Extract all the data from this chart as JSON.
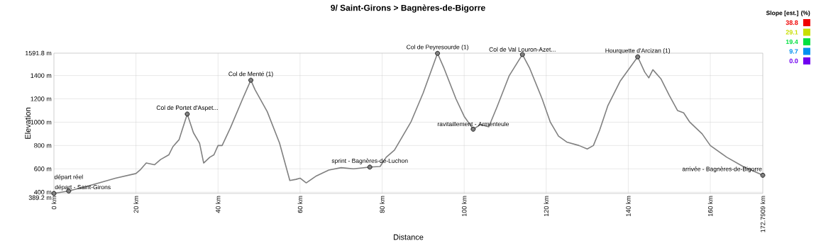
{
  "chart_data": {
    "type": "line",
    "title": "9/ Saint-Girons > Bagnères-de-Bigorre",
    "xlabel": "Distance",
    "ylabel": "Elevation",
    "clabel": "Slope [est.] (%)",
    "clim": [
      0,
      38.8
    ],
    "cticks": [
      {
        "value": 38.8,
        "label": "38.8"
      },
      {
        "value": 29.1,
        "label": "29.1"
      },
      {
        "value": 19.4,
        "label": "19.4"
      },
      {
        "value": 9.7,
        "label": "9.7"
      },
      {
        "value": 0,
        "label": "0.0"
      }
    ],
    "grid": true,
    "marker": "none",
    "line_style": "solid",
    "xlim": [
      0,
      172.7909
    ],
    "ylim": [
      389.2,
      1591.8
    ],
    "xticks": [
      {
        "value": 0,
        "label": "0 km"
      },
      {
        "value": 20,
        "label": "20 km"
      },
      {
        "value": 40,
        "label": "40 km"
      },
      {
        "value": 60,
        "label": "60 km"
      },
      {
        "value": 80,
        "label": "80 km"
      },
      {
        "value": 100,
        "label": "100 km"
      },
      {
        "value": 120,
        "label": "120 km"
      },
      {
        "value": 140,
        "label": "140 km"
      },
      {
        "value": 160,
        "label": "160 km"
      },
      {
        "value": 172.7909,
        "label": "172.7909 km"
      }
    ],
    "yticks": [
      {
        "value": 389.2,
        "label": "389.2 m"
      },
      {
        "value": 400,
        "label": "400 m"
      },
      {
        "value": 600,
        "label": "600 m"
      },
      {
        "value": 800,
        "label": "800 m"
      },
      {
        "value": 1000,
        "label": "1000 m"
      },
      {
        "value": 1200,
        "label": "1200 m"
      },
      {
        "value": 1400,
        "label": "1400 m"
      },
      {
        "value": 1591.8,
        "label": "1591.8 m"
      }
    ],
    "series": [
      {
        "color": "#808080",
        "x": [
          0,
          3.6,
          8,
          12,
          15,
          20,
          21,
          22.5,
          24.5,
          26,
          28,
          29,
          30.5,
          32.5,
          34,
          35.5,
          36.5,
          38,
          39,
          40,
          41,
          43,
          46,
          48,
          49,
          52,
          55,
          57.5,
          59,
          60,
          61.5,
          64,
          67,
          70,
          73,
          77,
          79.5,
          81,
          83,
          84.5,
          87,
          90,
          93.5,
          95,
          98,
          100,
          102.2,
          104,
          106,
          108,
          111,
          114.2,
          116,
          119,
          121,
          123,
          125,
          128,
          130,
          131.5,
          133,
          135,
          138,
          142.3,
          144,
          145,
          146,
          148,
          150,
          152,
          153.5,
          155,
          158,
          160,
          164,
          168,
          172.79
        ],
        "values": [
          389.2,
          410,
          450,
          490,
          520,
          560,
          590,
          650,
          635,
          680,
          720,
          790,
          850,
          1070,
          910,
          820,
          650,
          700,
          720,
          800,
          800,
          950,
          1200,
          1360,
          1280,
          1090,
          820,
          500,
          510,
          520,
          480,
          540,
          590,
          610,
          600,
          615,
          620,
          700,
          760,
          850,
          1000,
          1250,
          1590,
          1470,
          1200,
          1050,
          940,
          980,
          960,
          1130,
          1400,
          1580,
          1460,
          1200,
          1000,
          880,
          830,
          800,
          770,
          800,
          930,
          1140,
          1350,
          1560,
          1430,
          1380,
          1450,
          1370,
          1230,
          1100,
          1080,
          1000,
          900,
          800,
          700,
          620,
          545
        ]
      }
    ],
    "annotations": [
      {
        "text": "départ - Saint-Girons",
        "x": 0,
        "y": 389.2
      },
      {
        "text": "départ réel",
        "x": 3.6,
        "y": 410
      },
      {
        "text": "Col de Portet d'Aspet...",
        "x": 32.5,
        "y": 1070
      },
      {
        "text": "Col de Menté (1)",
        "x": 48,
        "y": 1360
      },
      {
        "text": "sprint - Bagnères-de-Luchon",
        "x": 77,
        "y": 615
      },
      {
        "text": "Col de Peyresourde (1)",
        "x": 93.5,
        "y": 1590
      },
      {
        "text": "ravitaillement - Armenteule",
        "x": 102.2,
        "y": 940
      },
      {
        "text": "Col de Val Louron-Azet...",
        "x": 114.2,
        "y": 1580
      },
      {
        "text": "Hourquette d'Arcizan (1)",
        "x": 142.3,
        "y": 1560
      },
      {
        "text": "arrivée - Bagnères-de-Bigorre",
        "x": 172.79,
        "y": 545
      }
    ]
  }
}
